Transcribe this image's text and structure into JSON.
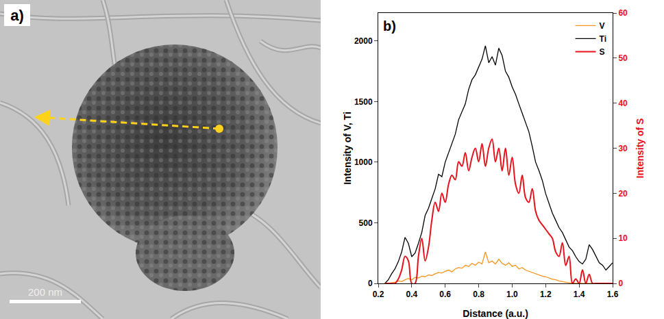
{
  "image_panel": {
    "label": "a)",
    "scale_bar": "200 nm"
  },
  "chart_data": {
    "type": "line",
    "annotations": [
      "b)"
    ],
    "x_label": "Distance (a.u.)",
    "y_label": "Intensity of V, Ti",
    "y2_label": "Intensity of S",
    "xlim": [
      0.2,
      1.6
    ],
    "xticks": [
      0.2,
      0.4,
      0.6,
      0.8,
      {
        "value": 1,
        "label": "1.0"
      },
      1.2,
      1.4,
      1.6
    ],
    "ylim": [
      0,
      2230
    ],
    "yticks": [
      0,
      500,
      1000,
      1500,
      2000
    ],
    "y2lim": [
      0,
      60
    ],
    "y2ticks": [
      0,
      10,
      20,
      30,
      40,
      50,
      60
    ],
    "grid": false,
    "legend": "top right",
    "x": [
      0.24,
      0.26,
      0.28,
      0.3,
      0.32,
      0.34,
      0.36,
      0.38,
      0.4,
      0.42,
      0.44,
      0.46,
      0.48,
      0.5,
      0.52,
      0.54,
      0.56,
      0.58,
      0.6,
      0.62,
      0.64,
      0.66,
      0.68,
      0.7,
      0.72,
      0.74,
      0.76,
      0.78,
      0.8,
      0.82,
      0.84,
      0.86,
      0.88,
      0.9,
      0.92,
      0.94,
      0.96,
      0.98,
      1.0,
      1.02,
      1.04,
      1.06,
      1.08,
      1.1,
      1.12,
      1.14,
      1.16,
      1.18,
      1.2,
      1.22,
      1.24,
      1.26,
      1.28,
      1.3,
      1.32,
      1.34,
      1.36,
      1.38,
      1.4,
      1.42,
      1.44,
      1.46,
      1.48,
      1.5,
      1.52,
      1.54,
      1.56,
      1.58,
      1.6
    ],
    "series": [
      {
        "name": "V",
        "color": "#f7941d",
        "line_style": "solid",
        "axis": "y",
        "values": [
          0,
          0,
          5,
          10,
          20,
          15,
          30,
          40,
          30,
          50,
          45,
          60,
          55,
          70,
          65,
          80,
          90,
          85,
          100,
          110,
          95,
          120,
          130,
          125,
          150,
          140,
          165,
          150,
          175,
          160,
          260,
          170,
          185,
          160,
          200,
          165,
          150,
          170,
          140,
          150,
          120,
          130,
          110,
          100,
          90,
          80,
          70,
          60,
          55,
          45,
          35,
          30,
          20,
          15,
          10,
          5,
          5,
          0,
          0,
          0,
          0,
          0,
          0,
          0,
          0,
          0,
          0,
          0,
          0
        ]
      },
      {
        "name": "Ti",
        "color": "#000000",
        "line_style": "solid",
        "axis": "y",
        "values": [
          0,
          30,
          80,
          120,
          180,
          260,
          380,
          330,
          220,
          250,
          330,
          420,
          560,
          620,
          700,
          780,
          900,
          880,
          1000,
          1080,
          1150,
          1230,
          1350,
          1420,
          1480,
          1600,
          1680,
          1720,
          1780,
          1850,
          1960,
          1820,
          1870,
          1800,
          1940,
          1880,
          1750,
          1700,
          1620,
          1560,
          1480,
          1400,
          1320,
          1250,
          1130,
          1000,
          930,
          850,
          740,
          660,
          580,
          520,
          460,
          420,
          360,
          300,
          270,
          220,
          180,
          160,
          200,
          320,
          280,
          220,
          170,
          150,
          110,
          140,
          170
        ]
      },
      {
        "name": "S",
        "color": "#e8101a",
        "line_style": "smooth",
        "axis": "y2",
        "values": [
          0,
          0,
          0,
          0,
          1,
          3,
          6,
          5,
          0,
          0,
          6,
          10,
          5,
          8,
          14,
          18,
          16,
          20,
          18,
          22,
          24,
          23,
          27,
          26,
          29,
          25,
          28,
          30,
          27,
          31,
          26,
          30,
          32,
          27,
          30,
          25,
          30,
          24,
          28,
          22,
          20,
          24,
          19,
          18,
          21,
          16,
          14,
          13,
          12,
          11,
          10,
          7,
          6,
          9,
          4,
          6,
          0,
          1,
          0,
          3,
          0,
          2,
          0,
          0,
          0,
          0,
          0,
          0,
          0
        ]
      }
    ]
  }
}
